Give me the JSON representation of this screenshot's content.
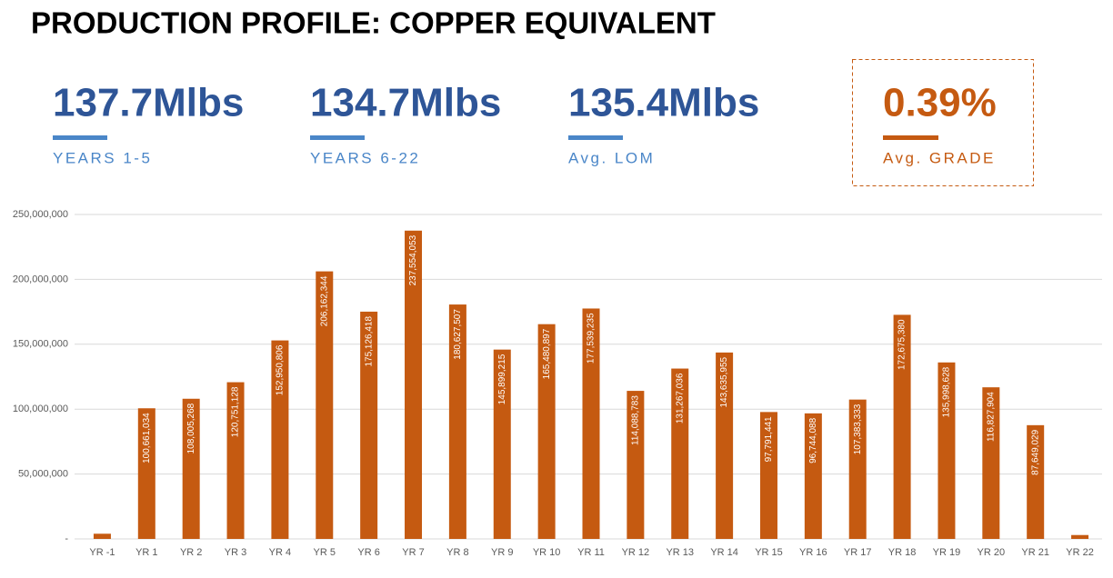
{
  "chart_data": {
    "type": "bar",
    "title": "PRODUCTION PROFILE: COPPER EQUIVALENT",
    "categories": [
      "YR -1",
      "YR 1",
      "YR 2",
      "YR 3",
      "YR 4",
      "YR 5",
      "YR 6",
      "YR 7",
      "YR 8",
      "YR 9",
      "YR 10",
      "YR 11",
      "YR 12",
      "YR 13",
      "YR 14",
      "YR 15",
      "YR 16",
      "YR 17",
      "YR 18",
      "YR 19",
      "YR 20",
      "YR 21",
      "YR 22"
    ],
    "values": [
      4000000,
      100661034,
      108005268,
      120751128,
      152950806,
      206162344,
      175126418,
      237554053,
      180627507,
      145899215,
      165480897,
      177539235,
      114088783,
      131267036,
      143635955,
      97791441,
      96744088,
      107383333,
      172675380,
      135998628,
      116827904,
      87649029,
      3000000
    ],
    "value_labels": [
      null,
      "100,661,034",
      "108,005,268",
      "120,751,128",
      "152,950,806",
      "206,162,344",
      "175,126,418",
      "237,554,053",
      "180,627,507",
      "145,899,215",
      "165,480,897",
      "177,539,235",
      "114,088,783",
      "131,267,036",
      "143,635,955",
      "97,791,441",
      "96,744,088",
      "107,383,333",
      "172,675,380",
      "135,998,628",
      "116,827,904",
      "87,649,029",
      null
    ],
    "color": "#c55a11",
    "ylim": [
      0,
      250000000
    ],
    "yticks": [
      {
        "value": 0,
        "label": "-"
      },
      {
        "value": 50000000,
        "label": "50,000,000"
      },
      {
        "value": 100000000,
        "label": "100,000,000"
      },
      {
        "value": 150000000,
        "label": "150,000,000"
      },
      {
        "value": 200000000,
        "label": "200,000,000"
      },
      {
        "value": 250000000,
        "label": "250,000,000"
      }
    ],
    "grid": true
  },
  "kpis": [
    {
      "value": "137.7Mlbs",
      "label": "YEARS 1-5"
    },
    {
      "value": "134.7Mlbs",
      "label": "YEARS 6-22"
    },
    {
      "value": "135.4Mlbs",
      "label": "Avg. LOM"
    },
    {
      "value": "0.39%",
      "label": "Avg. GRADE"
    }
  ]
}
